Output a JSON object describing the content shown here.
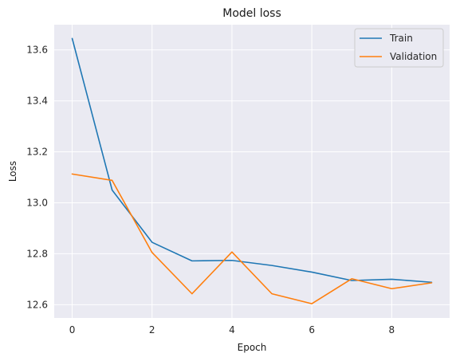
{
  "chart_data": {
    "type": "line",
    "title": "Model loss",
    "xlabel": "Epoch",
    "ylabel": "Loss",
    "x": [
      0,
      1,
      2,
      3,
      4,
      5,
      6,
      7,
      8,
      9
    ],
    "xticks": [
      0,
      2,
      4,
      6,
      8
    ],
    "xtick_labels": [
      "0",
      "2",
      "4",
      "6",
      "8"
    ],
    "yticks": [
      12.6,
      12.8,
      13.0,
      13.2,
      13.4,
      13.6
    ],
    "ytick_labels": [
      "12.6",
      "12.8",
      "13.0",
      "13.2",
      "13.4",
      "13.6"
    ],
    "xlim": [
      -0.45,
      9.45
    ],
    "ylim": [
      12.548,
      13.699
    ],
    "grid": true,
    "legend_position": "top-right",
    "series": [
      {
        "name": "Train",
        "color": "#1f77b4",
        "values": [
          13.645,
          13.05,
          12.845,
          12.772,
          12.774,
          12.754,
          12.728,
          12.695,
          12.7,
          12.688
        ]
      },
      {
        "name": "Validation",
        "color": "#ff7f0e",
        "values": [
          13.113,
          13.088,
          12.805,
          12.643,
          12.807,
          12.643,
          12.604,
          12.702,
          12.663,
          12.686
        ]
      }
    ]
  }
}
